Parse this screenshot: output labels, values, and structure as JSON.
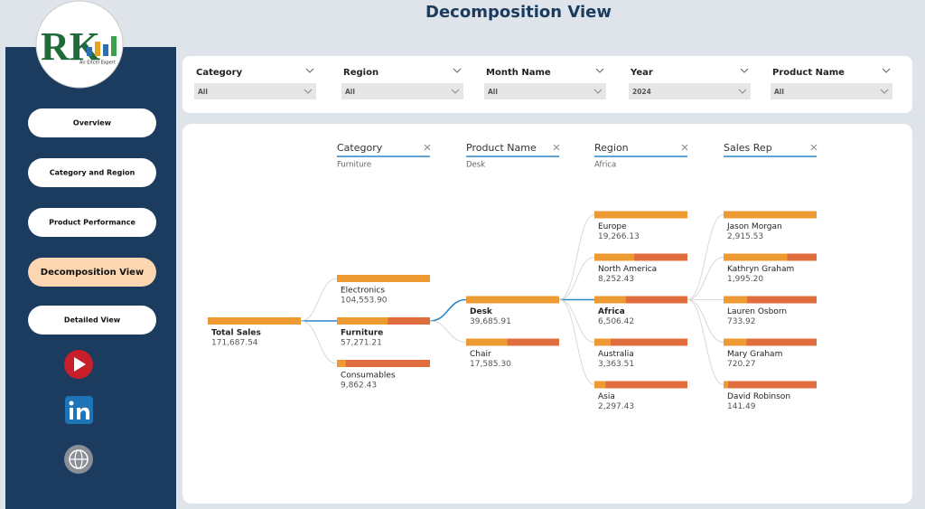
{
  "header": {
    "title": "Decomposition View"
  },
  "logo": {
    "initials": "RK",
    "tagline": "An EXcel Expert"
  },
  "nav": {
    "items": [
      "Overview",
      "Category and Region",
      "Product Performance",
      "Decomposition View",
      "Detailed View"
    ],
    "active": "Decomposition View"
  },
  "filters": [
    {
      "label": "Category",
      "value": "All"
    },
    {
      "label": "Region",
      "value": "All"
    },
    {
      "label": "Month Name",
      "value": "All"
    },
    {
      "label": "Year",
      "value": "2024"
    },
    {
      "label": "Product Name",
      "value": "All"
    }
  ],
  "tree": {
    "root": {
      "label": "Total Sales",
      "value": 171687.54,
      "value_label": "171,687.54"
    },
    "levels": [
      {
        "field": "Category",
        "selected": "Furniture",
        "nodes": [
          {
            "label": "Electronics",
            "value": 104553.9,
            "value_label": "104,553.90"
          },
          {
            "label": "Furniture",
            "value": 57271.21,
            "value_label": "57,271.21"
          },
          {
            "label": "Consumables",
            "value": 9862.43,
            "value_label": "9,862.43"
          }
        ]
      },
      {
        "field": "Product Name",
        "selected": "Desk",
        "nodes": [
          {
            "label": "Desk",
            "value": 39685.91,
            "value_label": "39,685.91"
          },
          {
            "label": "Chair",
            "value": 17585.3,
            "value_label": "17,585.30"
          }
        ]
      },
      {
        "field": "Region",
        "selected": "Africa",
        "nodes": [
          {
            "label": "Europe",
            "value": 19266.13,
            "value_label": "19,266.13"
          },
          {
            "label": "North America",
            "value": 8252.43,
            "value_label": "8,252.43"
          },
          {
            "label": "Africa",
            "value": 6506.42,
            "value_label": "6,506.42"
          },
          {
            "label": "Australia",
            "value": 3363.51,
            "value_label": "3,363.51"
          },
          {
            "label": "Asia",
            "value": 2297.43,
            "value_label": "2,297.43"
          }
        ]
      },
      {
        "field": "Sales Rep",
        "nodes": [
          {
            "label": "Jason Morgan",
            "value": 2915.53,
            "value_label": "2,915.53"
          },
          {
            "label": "Kathryn Graham",
            "value": 1995.2,
            "value_label": "1,995.20"
          },
          {
            "label": "Lauren Osborn",
            "value": 733.92,
            "value_label": "733.92"
          },
          {
            "label": "Mary Graham",
            "value": 720.27,
            "value_label": "720.27"
          },
          {
            "label": "David Robinson",
            "value": 141.49,
            "value_label": "141.49"
          }
        ]
      }
    ]
  }
}
